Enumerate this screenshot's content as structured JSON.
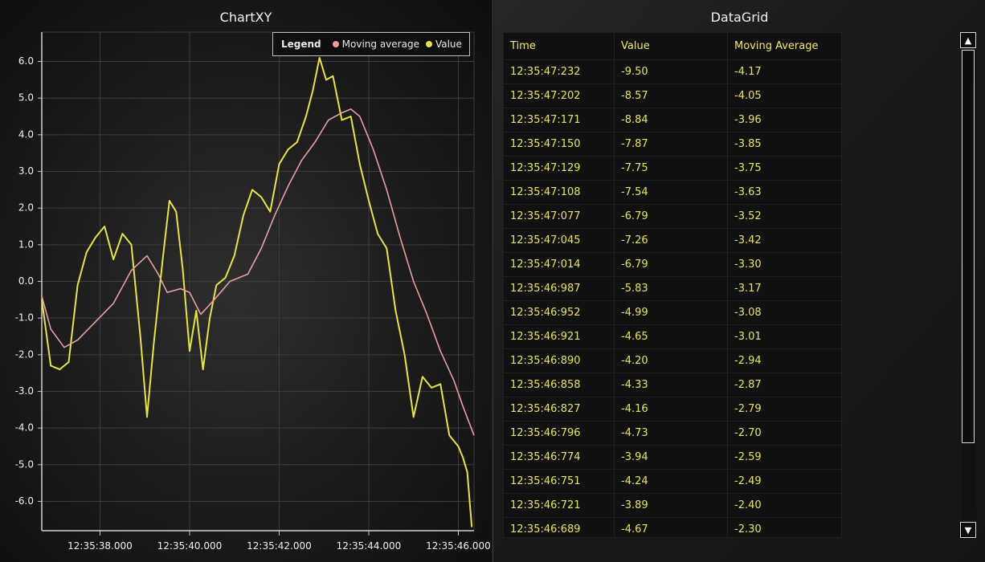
{
  "left_panel": {
    "title": "ChartXY"
  },
  "right_panel": {
    "title": "DataGrid"
  },
  "legend": {
    "title": "Legend",
    "entries": [
      {
        "label": "Moving average",
        "color": "#e8a0a0"
      },
      {
        "label": "Value",
        "color": "#e7e34a"
      }
    ]
  },
  "chart_data": {
    "type": "line",
    "ylim": [
      -6.8,
      6.8
    ],
    "yticks": [
      "6.0",
      "5.0",
      "4.0",
      "3.0",
      "2.0",
      "1.0",
      "0.0",
      "-1.0",
      "-2.0",
      "-3.0",
      "-4.0",
      "-5.0",
      "-6.0"
    ],
    "xlim": [
      "12:35:36.700",
      "12:35:46.350"
    ],
    "xticks": [
      "12:35:38.000",
      "12:35:40.000",
      "12:35:42.000",
      "12:35:44.000",
      "12:35:46.000"
    ],
    "grid": true,
    "legend_position": "top-right",
    "series": [
      {
        "name": "Value",
        "color": "#e7e34a",
        "points": [
          [
            "12:35:36.700",
            -0.5
          ],
          [
            "12:35:36.900",
            -2.3
          ],
          [
            "12:35:37.100",
            -2.4
          ],
          [
            "12:35:37.300",
            -2.2
          ],
          [
            "12:35:37.500",
            -0.1
          ],
          [
            "12:35:37.700",
            0.8
          ],
          [
            "12:35:37.900",
            1.2
          ],
          [
            "12:35:38.100",
            1.5
          ],
          [
            "12:35:38.300",
            0.6
          ],
          [
            "12:35:38.500",
            1.3
          ],
          [
            "12:35:38.700",
            1.0
          ],
          [
            "12:35:38.900",
            -1.5
          ],
          [
            "12:35:39.050",
            -3.7
          ],
          [
            "12:35:39.200",
            -1.7
          ],
          [
            "12:35:39.400",
            0.6
          ],
          [
            "12:35:39.550",
            2.2
          ],
          [
            "12:35:39.700",
            1.9
          ],
          [
            "12:35:39.850",
            0.3
          ],
          [
            "12:35:40.000",
            -1.9
          ],
          [
            "12:35:40.150",
            -0.8
          ],
          [
            "12:35:40.300",
            -2.4
          ],
          [
            "12:35:40.450",
            -1.0
          ],
          [
            "12:35:40.600",
            -0.1
          ],
          [
            "12:35:40.800",
            0.1
          ],
          [
            "12:35:41.000",
            0.7
          ],
          [
            "12:35:41.200",
            1.8
          ],
          [
            "12:35:41.400",
            2.5
          ],
          [
            "12:35:41.600",
            2.3
          ],
          [
            "12:35:41.800",
            1.9
          ],
          [
            "12:35:42.000",
            3.2
          ],
          [
            "12:35:42.200",
            3.6
          ],
          [
            "12:35:42.400",
            3.8
          ],
          [
            "12:35:42.600",
            4.5
          ],
          [
            "12:35:42.750",
            5.2
          ],
          [
            "12:35:42.900",
            6.1
          ],
          [
            "12:35:43.050",
            5.5
          ],
          [
            "12:35:43.200",
            5.6
          ],
          [
            "12:35:43.400",
            4.4
          ],
          [
            "12:35:43.600",
            4.5
          ],
          [
            "12:35:43.800",
            3.2
          ],
          [
            "12:35:44.000",
            2.2
          ],
          [
            "12:35:44.200",
            1.3
          ],
          [
            "12:35:44.400",
            0.9
          ],
          [
            "12:35:44.600",
            -0.8
          ],
          [
            "12:35:44.800",
            -2.0
          ],
          [
            "12:35:45.000",
            -3.7
          ],
          [
            "12:35:45.200",
            -2.6
          ],
          [
            "12:35:45.400",
            -2.9
          ],
          [
            "12:35:45.600",
            -2.8
          ],
          [
            "12:35:45.800",
            -4.2
          ],
          [
            "12:35:46.000",
            -4.5
          ],
          [
            "12:35:46.100",
            -4.8
          ],
          [
            "12:35:46.200",
            -5.2
          ],
          [
            "12:35:46.300",
            -6.7
          ]
        ]
      },
      {
        "name": "Moving average",
        "color": "#e8a0a0",
        "points": [
          [
            "12:35:36.700",
            -0.4
          ],
          [
            "12:35:36.900",
            -1.3
          ],
          [
            "12:35:37.200",
            -1.8
          ],
          [
            "12:35:37.500",
            -1.6
          ],
          [
            "12:35:37.900",
            -1.1
          ],
          [
            "12:35:38.300",
            -0.6
          ],
          [
            "12:35:38.700",
            0.3
          ],
          [
            "12:35:39.050",
            0.7
          ],
          [
            "12:35:39.300",
            0.2
          ],
          [
            "12:35:39.500",
            -0.3
          ],
          [
            "12:35:39.800",
            -0.2
          ],
          [
            "12:35:40.000",
            -0.3
          ],
          [
            "12:35:40.250",
            -0.9
          ],
          [
            "12:35:40.550",
            -0.5
          ],
          [
            "12:35:40.900",
            0.0
          ],
          [
            "12:35:41.300",
            0.2
          ],
          [
            "12:35:41.600",
            0.9
          ],
          [
            "12:35:41.900",
            1.8
          ],
          [
            "12:35:42.200",
            2.6
          ],
          [
            "12:35:42.500",
            3.3
          ],
          [
            "12:35:42.800",
            3.8
          ],
          [
            "12:35:43.100",
            4.4
          ],
          [
            "12:35:43.400",
            4.6
          ],
          [
            "12:35:43.600",
            4.7
          ],
          [
            "12:35:43.800",
            4.5
          ],
          [
            "12:35:44.100",
            3.6
          ],
          [
            "12:35:44.400",
            2.5
          ],
          [
            "12:35:44.700",
            1.2
          ],
          [
            "12:35:45.000",
            0.0
          ],
          [
            "12:35:45.300",
            -0.9
          ],
          [
            "12:35:45.600",
            -1.9
          ],
          [
            "12:35:45.900",
            -2.7
          ],
          [
            "12:35:46.100",
            -3.4
          ],
          [
            "12:35:46.350",
            -4.2
          ]
        ]
      }
    ]
  },
  "data_grid": {
    "columns": [
      "Time",
      "Value",
      "Moving Average"
    ],
    "rows": [
      [
        "12:35:47:232",
        "-9.50",
        "-4.17"
      ],
      [
        "12:35:47:202",
        "-8.57",
        "-4.05"
      ],
      [
        "12:35:47:171",
        "-8.84",
        "-3.96"
      ],
      [
        "12:35:47:150",
        "-7.87",
        "-3.85"
      ],
      [
        "12:35:47:129",
        "-7.75",
        "-3.75"
      ],
      [
        "12:35:47:108",
        "-7.54",
        "-3.63"
      ],
      [
        "12:35:47:077",
        "-6.79",
        "-3.52"
      ],
      [
        "12:35:47:045",
        "-7.26",
        "-3.42"
      ],
      [
        "12:35:47:014",
        "-6.79",
        "-3.30"
      ],
      [
        "12:35:46:987",
        "-5.83",
        "-3.17"
      ],
      [
        "12:35:46:952",
        "-4.99",
        "-3.08"
      ],
      [
        "12:35:46:921",
        "-4.65",
        "-3.01"
      ],
      [
        "12:35:46:890",
        "-4.20",
        "-2.94"
      ],
      [
        "12:35:46:858",
        "-4.33",
        "-2.87"
      ],
      [
        "12:35:46:827",
        "-4.16",
        "-2.79"
      ],
      [
        "12:35:46:796",
        "-4.73",
        "-2.70"
      ],
      [
        "12:35:46:774",
        "-3.94",
        "-2.59"
      ],
      [
        "12:35:46:751",
        "-4.24",
        "-2.49"
      ],
      [
        "12:35:46:721",
        "-3.89",
        "-2.40"
      ],
      [
        "12:35:46:689",
        "-4.67",
        "-2.30"
      ]
    ]
  },
  "scrollbar": {
    "up_icon": "▲",
    "down_icon": "▼"
  }
}
